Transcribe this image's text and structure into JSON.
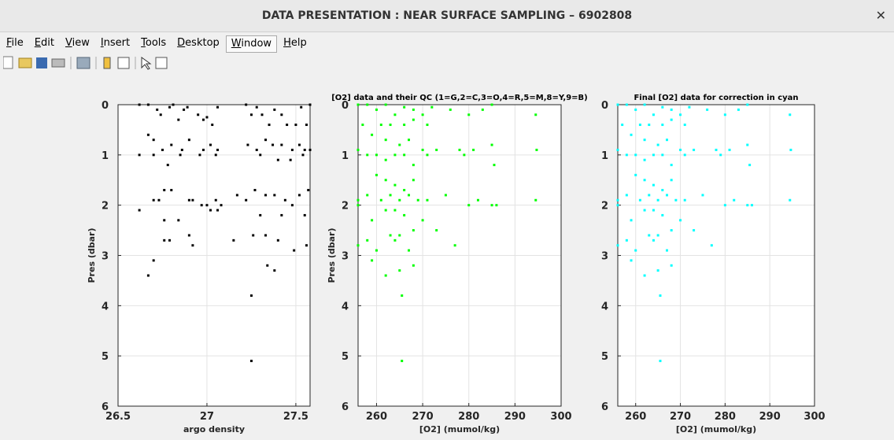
{
  "window_title": "DATA PRESENTATION : NEAR SURFACE SAMPLING – 6902808",
  "menu": [
    "File",
    "Edit",
    "View",
    "Insert",
    "Tools",
    "Desktop",
    "Window",
    "Help"
  ],
  "chart_data": [
    {
      "type": "scatter",
      "xlabel": "argo density",
      "ylabel": "Pres (dbar)",
      "color": "#000000",
      "xlim": [
        26.5,
        27.58
      ],
      "ylim": [
        0,
        6
      ],
      "y_reverse": true,
      "grid": true,
      "xticks": [
        26.5,
        27,
        27.5
      ],
      "yticks": [
        0,
        1,
        2,
        3,
        4,
        5,
        6
      ],
      "x": [
        26.62,
        26.67,
        26.72,
        26.74,
        26.79,
        26.81,
        26.84,
        26.87,
        26.89,
        26.95,
        26.98,
        27.0,
        27.03,
        27.06,
        27.22,
        27.25,
        27.28,
        27.31,
        27.35,
        27.38,
        27.42,
        27.45,
        27.5,
        27.53,
        27.56,
        27.58,
        26.67,
        26.7,
        26.75,
        26.8,
        26.86,
        26.9,
        26.98,
        27.02,
        27.06,
        27.23,
        27.28,
        27.33,
        27.37,
        27.42,
        27.48,
        27.52,
        27.55,
        27.58,
        26.62,
        26.7,
        26.78,
        26.85,
        26.96,
        27.05,
        27.3,
        27.4,
        27.47,
        27.54,
        26.76,
        26.8,
        26.7,
        26.73,
        26.9,
        26.92,
        26.97,
        27.0,
        27.05,
        27.08,
        27.17,
        27.22,
        27.27,
        27.33,
        27.38,
        27.44,
        27.48,
        27.52,
        27.57,
        26.62,
        26.76,
        26.84,
        27.02,
        27.06,
        27.3,
        27.42,
        27.55,
        26.76,
        26.79,
        26.9,
        26.92,
        27.15,
        27.26,
        27.33,
        27.4,
        27.49,
        27.56,
        26.7,
        26.67,
        27.34,
        27.38,
        27.25,
        27.25
      ],
      "values": [
        0,
        0,
        0.1,
        0.2,
        0.05,
        0,
        0.3,
        0.1,
        0.05,
        0.2,
        0.3,
        0.25,
        0.4,
        0.05,
        0,
        0.2,
        0.05,
        0.2,
        0.4,
        0.1,
        0.2,
        0.4,
        0.4,
        0.05,
        0.4,
        0,
        0.6,
        0.7,
        0.9,
        0.8,
        0.9,
        0.7,
        0.9,
        0.8,
        0.9,
        0.8,
        0.9,
        0.7,
        0.8,
        0.8,
        0.9,
        0.8,
        0.9,
        0.9,
        1.0,
        1.0,
        1.2,
        1.0,
        1.0,
        1.0,
        1.0,
        1.1,
        1.1,
        1.0,
        1.7,
        1.7,
        1.9,
        1.9,
        1.9,
        1.9,
        2.0,
        2.0,
        1.9,
        2.0,
        1.8,
        1.9,
        1.7,
        1.8,
        1.8,
        1.9,
        2.0,
        1.8,
        1.7,
        2.1,
        2.3,
        2.3,
        2.1,
        2.1,
        2.2,
        2.2,
        2.2,
        2.7,
        2.7,
        2.6,
        2.8,
        2.7,
        2.6,
        2.6,
        2.7,
        2.9,
        2.8,
        3.1,
        3.4,
        3.2,
        3.3,
        3.8,
        5.1
      ]
    },
    {
      "type": "scatter",
      "title": "[O2] data and their QC (1=G,2=C,3=O,4=R,5=M,8=Y,9=B)",
      "xlabel": "[O2] (mumol/kg)",
      "ylabel": "Pres (dbar)",
      "color": "#00ff00",
      "xlim": [
        256,
        300
      ],
      "ylim": [
        0,
        6
      ],
      "y_reverse": true,
      "grid": true,
      "xticks": [
        260,
        270,
        280,
        290,
        300
      ],
      "yticks": [
        0,
        1,
        2,
        3,
        4,
        5,
        6
      ],
      "x": [
        256,
        258,
        260,
        262,
        264,
        266,
        268,
        270,
        272,
        276,
        280,
        283,
        285,
        294.5,
        257,
        261,
        263,
        266,
        268,
        271,
        259,
        262,
        265,
        267,
        270,
        273,
        278,
        281,
        285,
        294.7,
        256,
        258,
        260,
        262,
        264,
        266,
        268,
        271,
        279,
        285.5,
        260,
        262,
        264,
        266,
        268,
        258,
        261,
        263,
        265,
        267,
        269,
        271,
        275,
        280,
        282,
        285,
        286,
        294.5,
        256,
        256,
        262,
        264,
        266,
        270,
        259,
        263,
        265,
        268,
        273,
        277,
        258,
        260,
        264,
        267,
        256,
        259,
        262,
        265,
        268,
        265.5,
        265.5
      ],
      "values": [
        0,
        0,
        0.1,
        0,
        0.2,
        0.05,
        0.1,
        0.2,
        0.05,
        0.1,
        0.2,
        0.1,
        0,
        0.2,
        0.4,
        0.4,
        0.4,
        0.4,
        0.3,
        0.4,
        0.6,
        0.7,
        0.8,
        0.7,
        0.9,
        0.9,
        0.9,
        0.9,
        0.8,
        0.9,
        0.9,
        1.0,
        1.0,
        1.1,
        1.0,
        1.0,
        1.2,
        1.0,
        1.0,
        1.2,
        1.4,
        1.5,
        1.6,
        1.7,
        1.5,
        1.8,
        1.9,
        1.8,
        1.9,
        1.8,
        1.9,
        1.9,
        1.8,
        2.0,
        1.9,
        2.0,
        2.0,
        1.9,
        1.9,
        2.0,
        2.1,
        2.1,
        2.2,
        2.3,
        2.3,
        2.6,
        2.6,
        2.5,
        2.5,
        2.8,
        2.7,
        2.9,
        2.7,
        2.9,
        2.8,
        3.1,
        3.4,
        3.3,
        3.2,
        3.8,
        5.1
      ]
    },
    {
      "type": "scatter",
      "title": "Final [O2] data for correction in cyan",
      "xlabel": "[O2] (mumol/kg)",
      "color": "#00ffff",
      "xlim": [
        256,
        300
      ],
      "ylim": [
        0,
        6
      ],
      "y_reverse": true,
      "grid": true,
      "xticks": [
        260,
        270,
        280,
        290,
        300
      ],
      "yticks": [
        0,
        1,
        2,
        3,
        4,
        5,
        6
      ],
      "x": [
        256,
        258,
        260,
        262,
        264,
        266,
        268,
        270,
        272,
        276,
        280,
        283,
        285,
        294.5,
        257,
        261,
        263,
        266,
        268,
        271,
        259,
        262,
        265,
        267,
        270,
        273,
        278,
        281,
        285,
        294.7,
        256,
        258,
        260,
        262,
        264,
        266,
        268,
        271,
        279,
        285.5,
        260,
        262,
        264,
        266,
        268,
        258,
        261,
        263,
        265,
        267,
        269,
        271,
        275,
        280,
        282,
        285,
        286,
        294.5,
        256,
        256,
        262,
        264,
        266,
        270,
        259,
        263,
        265,
        268,
        273,
        277,
        258,
        260,
        264,
        267,
        256,
        259,
        262,
        265,
        268,
        265.5,
        265.5
      ],
      "values": [
        0,
        0,
        0.1,
        0,
        0.2,
        0.05,
        0.1,
        0.2,
        0.05,
        0.1,
        0.2,
        0.1,
        0,
        0.2,
        0.4,
        0.4,
        0.4,
        0.4,
        0.3,
        0.4,
        0.6,
        0.7,
        0.8,
        0.7,
        0.9,
        0.9,
        0.9,
        0.9,
        0.8,
        0.9,
        0.9,
        1.0,
        1.0,
        1.1,
        1.0,
        1.0,
        1.2,
        1.0,
        1.0,
        1.2,
        1.4,
        1.5,
        1.6,
        1.7,
        1.5,
        1.8,
        1.9,
        1.8,
        1.9,
        1.8,
        1.9,
        1.9,
        1.8,
        2.0,
        1.9,
        2.0,
        2.0,
        1.9,
        1.9,
        2.0,
        2.1,
        2.1,
        2.2,
        2.3,
        2.3,
        2.6,
        2.6,
        2.5,
        2.5,
        2.8,
        2.7,
        2.9,
        2.7,
        2.9,
        2.8,
        3.1,
        3.4,
        3.3,
        3.2,
        3.8,
        5.1
      ]
    }
  ]
}
